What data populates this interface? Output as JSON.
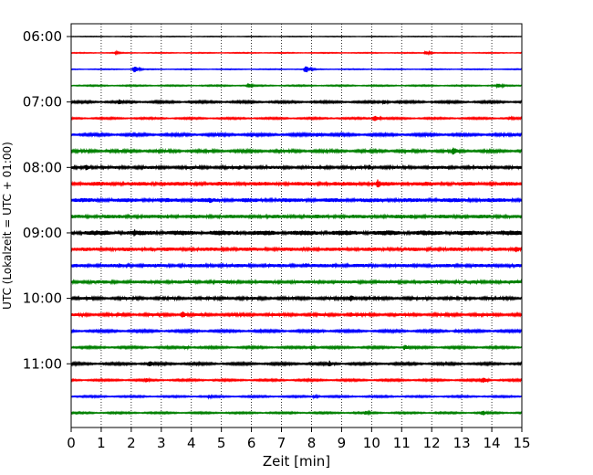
{
  "chart_data": {
    "type": "line",
    "subtype": "helicorder",
    "xlabel": "Zeit  [min]",
    "ylabel": "UTC (Lokalzeit = UTC + 01:00)",
    "xlim": [
      0,
      15
    ],
    "x_ticks": [
      "0",
      "1",
      "2",
      "3",
      "4",
      "5",
      "6",
      "7",
      "8",
      "9",
      "10",
      "11",
      "12",
      "13",
      "14",
      "15"
    ],
    "y_ticks": [
      "06:00",
      "07:00",
      "08:00",
      "09:00",
      "10:00",
      "11:00"
    ],
    "grid": {
      "x": "dotted-vertical",
      "y": false
    },
    "trace_interval_min": 15,
    "trace_colors": [
      "#000000",
      "#ff0000",
      "#0000ff",
      "#008000"
    ],
    "traces": [
      {
        "start": "06:00",
        "level": 0.3,
        "events": []
      },
      {
        "start": "06:15",
        "level": 0.4,
        "events": [
          [
            1.5,
            1.5
          ],
          [
            11.8,
            2.5
          ]
        ]
      },
      {
        "start": "06:30",
        "level": 0.4,
        "events": [
          [
            2.1,
            4
          ],
          [
            7.8,
            4.5
          ]
        ]
      },
      {
        "start": "06:45",
        "level": 0.6,
        "events": [
          [
            5.9,
            2.5
          ],
          [
            14.2,
            3
          ]
        ]
      },
      {
        "start": "07:00",
        "level": 1.0,
        "events": [
          [
            1.6,
            3
          ],
          [
            10.4,
            3
          ]
        ]
      },
      {
        "start": "07:15",
        "level": 0.8,
        "events": [
          [
            10.1,
            4
          ],
          [
            14.6,
            2
          ]
        ]
      },
      {
        "start": "07:30",
        "level": 1.2,
        "events": [
          [
            8.2,
            3
          ],
          [
            14.7,
            2
          ]
        ]
      },
      {
        "start": "07:45",
        "level": 1.3,
        "events": [
          [
            1.2,
            2
          ],
          [
            12.7,
            5
          ]
        ]
      },
      {
        "start": "08:00",
        "level": 1.5,
        "events": [
          [
            0.5,
            4
          ],
          [
            5.6,
            3
          ],
          [
            9.9,
            3.5
          ]
        ]
      },
      {
        "start": "08:15",
        "level": 1.9,
        "events": [
          [
            3.1,
            2.5
          ],
          [
            10.2,
            5
          ],
          [
            11.8,
            3
          ]
        ]
      },
      {
        "start": "08:30",
        "level": 2.0,
        "events": [
          [
            3.0,
            3
          ],
          [
            4.6,
            4
          ],
          [
            15.0,
            2.5
          ]
        ]
      },
      {
        "start": "08:45",
        "level": 1.8,
        "events": [
          [
            3.2,
            2.5
          ],
          [
            11.3,
            3
          ],
          [
            13.0,
            2.5
          ]
        ]
      },
      {
        "start": "09:00",
        "level": 2.4,
        "events": [
          [
            1.2,
            3
          ],
          [
            2.1,
            4.5
          ],
          [
            5.5,
            3
          ],
          [
            10.1,
            3
          ],
          [
            13.1,
            3
          ]
        ]
      },
      {
        "start": "09:15",
        "level": 1.8,
        "events": [
          [
            14.8,
            4
          ],
          [
            2.7,
            2.5
          ]
        ]
      },
      {
        "start": "09:30",
        "level": 1.7,
        "events": [
          [
            1.6,
            3
          ],
          [
            7.8,
            3
          ],
          [
            8.7,
            2.5
          ]
        ]
      },
      {
        "start": "09:45",
        "level": 1.6,
        "events": [
          [
            0.9,
            2.5
          ],
          [
            5.2,
            3
          ],
          [
            14.0,
            2.5
          ]
        ]
      },
      {
        "start": "10:00",
        "level": 1.4,
        "events": [
          [
            5.1,
            2.5
          ],
          [
            9.3,
            4
          ]
        ]
      },
      {
        "start": "10:15",
        "level": 1.4,
        "events": [
          [
            3.7,
            4
          ],
          [
            9.3,
            3
          ],
          [
            13.8,
            2
          ]
        ]
      },
      {
        "start": "10:30",
        "level": 1.1,
        "events": [
          [
            8.3,
            2
          ],
          [
            12.8,
            2
          ]
        ]
      },
      {
        "start": "10:45",
        "level": 1.0,
        "events": [
          [
            3.8,
            2
          ],
          [
            11.1,
            3
          ],
          [
            8.0,
            2.5
          ]
        ]
      },
      {
        "start": "11:00",
        "level": 1.1,
        "events": [
          [
            2.6,
            3.5
          ],
          [
            8.6,
            3.5
          ]
        ]
      },
      {
        "start": "11:15",
        "level": 0.9,
        "events": [
          [
            2.5,
            2.5
          ],
          [
            13.7,
            3.5
          ]
        ]
      },
      {
        "start": "11:30",
        "level": 0.8,
        "events": [
          [
            4.6,
            2
          ],
          [
            8.1,
            2
          ]
        ]
      },
      {
        "start": "11:45",
        "level": 0.8,
        "events": [
          [
            9.8,
            2.5
          ],
          [
            13.7,
            3
          ]
        ]
      }
    ]
  }
}
